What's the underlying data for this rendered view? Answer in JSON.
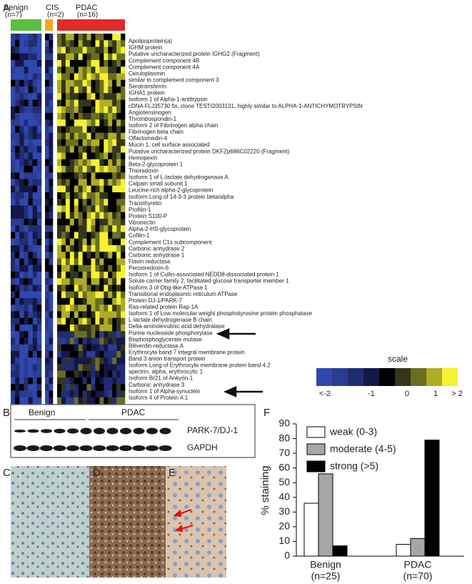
{
  "panel_labels": [
    "A",
    "B",
    "C",
    "D",
    "E",
    "F"
  ],
  "heatmap": {
    "groups": [
      {
        "name": "Benign",
        "n": "(n=7)",
        "color": "#5cbf3f"
      },
      {
        "name": "CIS",
        "n": "(n=2)",
        "color": "#f5a623"
      },
      {
        "name": "PDAC",
        "n": "(n=16)",
        "color": "#e02b2b"
      }
    ],
    "proteins": [
      "Apolipoprotein(a)",
      "IGHM protein",
      "Putative uncharacterized protein IGHG2 (Fragment)",
      "Complement component 4B",
      "Complement component 4A",
      "Ceruloplasmin",
      "similar to complement component 3",
      "Serotransferrin",
      "IGHA1 protein",
      "Isoform 1 of Alpha-1-antitrypsin",
      "cDNA FLJ35730 fis, clone TESTI2003131, highly similar to ALPHA-1-ANTICHYMOTRYPSIN",
      "Angiotensinogen",
      "Thrombospondin-1",
      "Isoform 2 of Fibrinogen alpha chain",
      "Fibrinogen beta chain",
      "Olfactomedin-4",
      "Mucin 1, cell surface associated",
      "Putative uncharacterized protein DKFZp686C02220 (Fragment)",
      "Hemopexin",
      "Beta-2-glycoprotein 1",
      "Thioredoxin",
      "Isoform 1 of L-lactate dehydrogenase A",
      "Calpain small subunit 1",
      "Leucine-rich alpha-2-glycoprotein",
      "Isoform Long of 14-3-3 protein beta/alpha",
      "Transthyretin",
      "Profilin-1",
      "Protein S100-P",
      "Vitronectin",
      "Alpha-2-HS-glycoprotein",
      "Cofilin-1",
      "Complement C1s subcomponent",
      "Carbonic anhydrase 2",
      "Carbonic anhydrase 1",
      "Flavin reductase",
      "Peroxiredoxin-6",
      "Isoform 1 of Cullin-associated NEDD8-dissociated protein 1",
      "Solute carrier family 2, facilitated glucose transporter member 1",
      "Isoform 3 of Obg-like ATPase 1",
      "Transitional endoplasmic reticulum ATPase",
      "Protein DJ-1/PARK-7",
      "Ras-related protein Rap-1A",
      "Isoform 1 of Low molecular weight phosphotyrosine protein phosphatase",
      "L-lactate dehydrogenase B chain",
      "Delta-aminolevulinic acid dehydratase",
      "Purine nucleoside phosphorylase",
      "Bisphosphoglycerate mutase",
      "Biliverdin reductase A",
      "Erythrocyte band 7 integral membrane protein",
      "Band 3 anion transport protein",
      "Isoform Long of Erythrocyte membrane protein band 4.2",
      "spectrin, alpha, erythrocytic 1",
      "Isoform Br21 of Ankyrin-1",
      "Carbonic anhydrase 3",
      "Isoform 1 of Alpha-synuclein",
      "Isoform 4 of Protein 4.1"
    ],
    "scale_title": "scale",
    "scale_labels": [
      "<-2",
      "-1",
      "0",
      "1",
      "> 2"
    ]
  },
  "blot": {
    "groups": [
      "Benign",
      "PDAC"
    ],
    "bands": [
      "PARK-7/DJ-1",
      "GAPDH"
    ]
  },
  "chart_data": {
    "type": "bar",
    "ylabel": "% staining",
    "categories": [
      "Benign",
      "PDAC"
    ],
    "category_counts": [
      "(n=25)",
      "(n=70)"
    ],
    "series": [
      {
        "name": "weak (0-3)",
        "color": "#ffffff",
        "values": [
          36,
          8
        ]
      },
      {
        "name": "moderate (4-5)",
        "color": "#a6a6a6",
        "values": [
          56,
          12
        ]
      },
      {
        "name": "strong (>5)",
        "color": "#000000",
        "values": [
          7,
          79
        ]
      }
    ],
    "ylim": [
      0,
      90
    ],
    "yticks": [
      0,
      10,
      20,
      30,
      40,
      50,
      60,
      70,
      80,
      90
    ]
  }
}
